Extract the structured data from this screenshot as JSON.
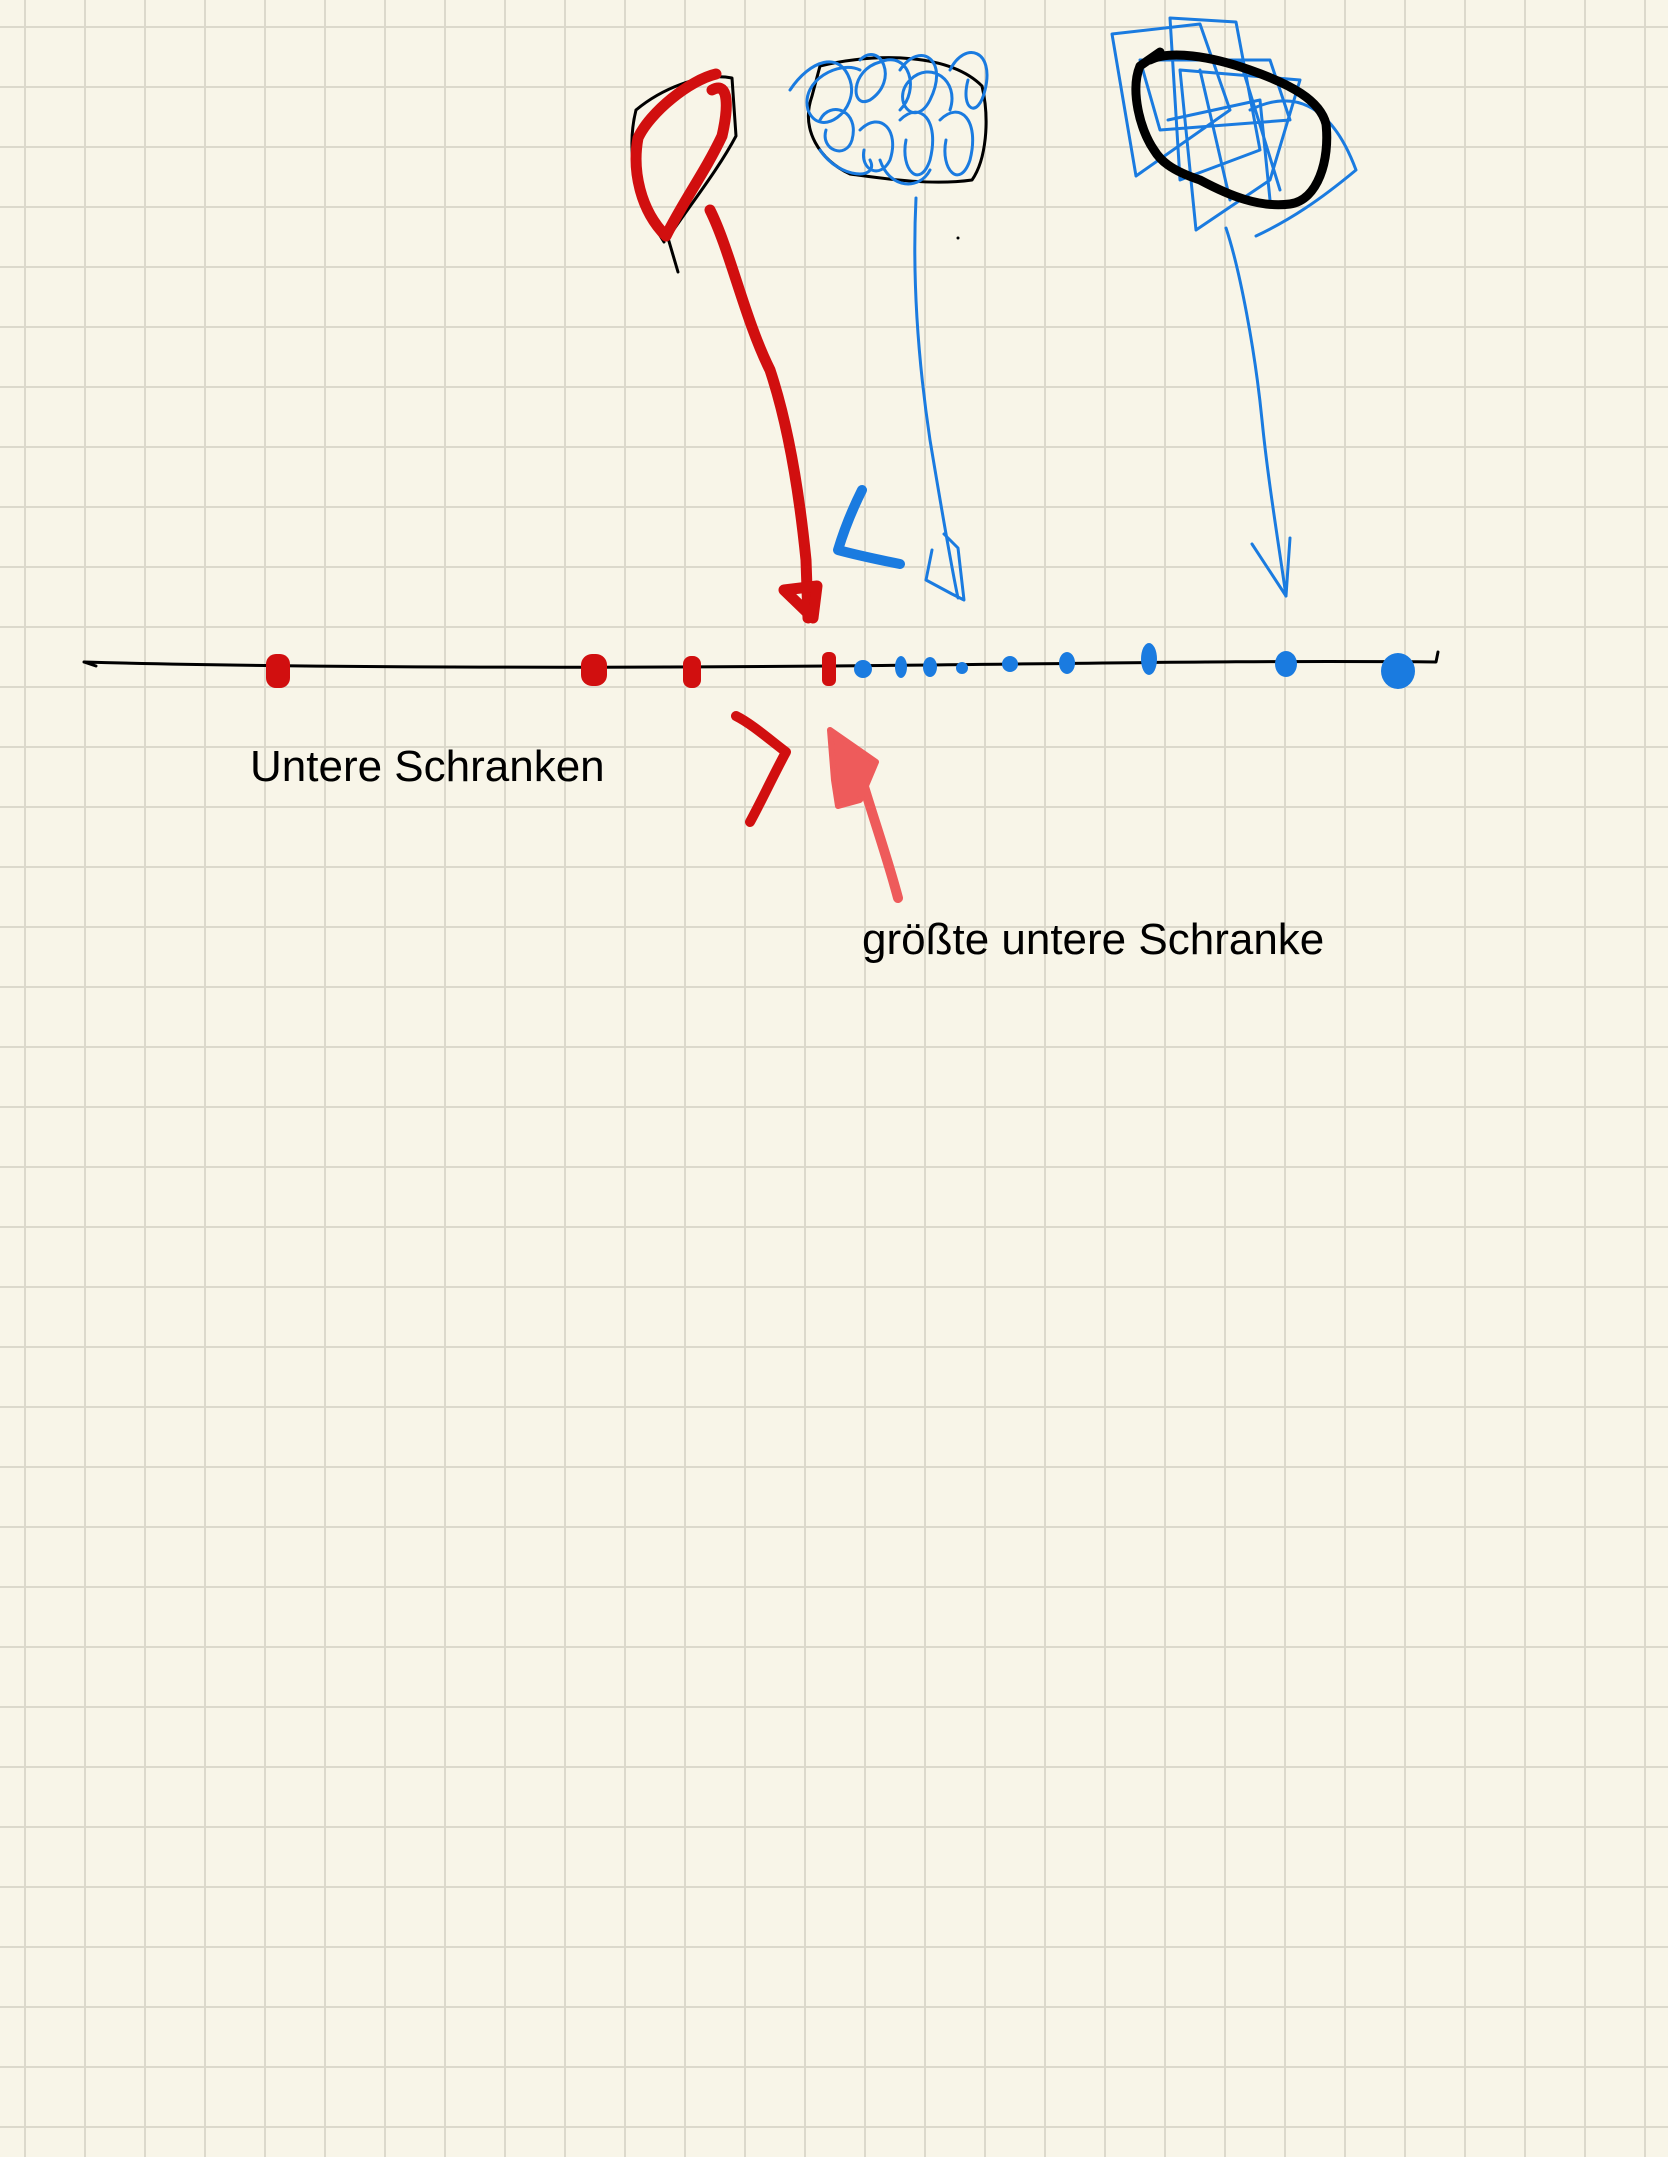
{
  "labels": {
    "lower_bounds": "Untere Schranken",
    "greatest_lower_bound": "größte untere Schranke"
  },
  "colors": {
    "paper": "#f8f5e8",
    "grid": "#dcd9cc",
    "ink_black": "#000000",
    "ink_red": "#d10f0f",
    "ink_blue": "#1a7be0",
    "ink_pink": "#ee5b5b"
  }
}
